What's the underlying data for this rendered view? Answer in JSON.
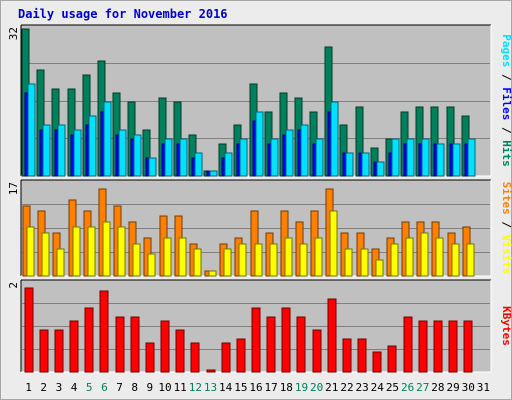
{
  "chart_data": {
    "title": "Daily usage for November 2016",
    "days": [
      "1",
      "2",
      "3",
      "4",
      "5",
      "6",
      "7",
      "8",
      "9",
      "10",
      "11",
      "12",
      "13",
      "14",
      "15",
      "16",
      "17",
      "18",
      "19",
      "20",
      "21",
      "22",
      "23",
      "24",
      "25",
      "26",
      "27",
      "28",
      "29",
      "30",
      "31"
    ],
    "weekend_days": [
      "5",
      "6",
      "12",
      "13",
      "19",
      "20",
      "26",
      "27"
    ],
    "colors": {
      "hits": "#00805c",
      "files": "#0000ff",
      "pages": "#00e0ff",
      "visits": "#ffff00",
      "sites": "#ff8000",
      "kbytes": "#ff0000",
      "weekend_label": "#00805c",
      "weekday_label": "#000000",
      "title": "#0000c8"
    },
    "panels": [
      {
        "type": "bar",
        "ymax_label": "32",
        "ylim": [
          0,
          32
        ],
        "ylabel_parts": [
          {
            "text": "Pages",
            "color": "#00e0ff"
          },
          {
            "text": " / ",
            "color": "#000000"
          },
          {
            "text": "Files",
            "color": "#0000ff"
          },
          {
            "text": " / ",
            "color": "#000000"
          },
          {
            "text": "Hits",
            "color": "#00805c"
          }
        ],
        "series": [
          {
            "name": "Hits",
            "color": "#00805c",
            "values": [
              32,
              23,
              19,
              19,
              22,
              25,
              18,
              16,
              10,
              17,
              16,
              9,
              1,
              7,
              11,
              20,
              14,
              18,
              17,
              14,
              28,
              11,
              15,
              6,
              8,
              14,
              15,
              15,
              15,
              13,
              0
            ]
          },
          {
            "name": "Files",
            "color": "#0000ff",
            "values": [
              18,
              10,
              10,
              9,
              11,
              14,
              9,
              8,
              4,
              7,
              7,
              4,
              1,
              4,
              7,
              12,
              7,
              9,
              10,
              7,
              14,
              5,
              5,
              3,
              5,
              7,
              7,
              7,
              7,
              7,
              0
            ]
          },
          {
            "name": "Pages",
            "color": "#00e0ff",
            "values": [
              20,
              11,
              11,
              10,
              13,
              16,
              10,
              9,
              4,
              8,
              8,
              5,
              1,
              5,
              8,
              14,
              8,
              10,
              11,
              8,
              16,
              5,
              5,
              3,
              8,
              8,
              8,
              7,
              7,
              8,
              0
            ]
          }
        ]
      },
      {
        "type": "bar",
        "ymax_label": "17",
        "ylim": [
          0,
          17
        ],
        "ylabel_parts": [
          {
            "text": "Sites",
            "color": "#ff8000"
          },
          {
            "text": " / ",
            "color": "#000000"
          },
          {
            "text": "Visits",
            "color": "#ffff00"
          }
        ],
        "series": [
          {
            "name": "Sites",
            "color": "#ff8000",
            "values": [
              13,
              12,
              8,
              14,
              12,
              16,
              13,
              10,
              7,
              11,
              11,
              6,
              1,
              6,
              7,
              12,
              8,
              12,
              10,
              12,
              16,
              8,
              8,
              5,
              7,
              10,
              10,
              10,
              8,
              9,
              0
            ]
          },
          {
            "name": "Visits",
            "color": "#ffff00",
            "values": [
              9,
              8,
              5,
              9,
              9,
              10,
              9,
              6,
              4,
              7,
              7,
              5,
              1,
              5,
              6,
              6,
              6,
              7,
              6,
              7,
              12,
              5,
              5,
              3,
              6,
              7,
              8,
              7,
              6,
              6,
              0
            ]
          }
        ]
      },
      {
        "type": "bar",
        "ymax_label": "2",
        "ylim": [
          0,
          2
        ],
        "ylabel_parts": [
          {
            "text": "KBytes",
            "color": "#ff0000"
          }
        ],
        "series": [
          {
            "name": "KBytes",
            "color": "#ff0000",
            "values": [
              1.9,
              0.95,
              0.95,
              1.15,
              1.45,
              1.85,
              1.25,
              1.25,
              0.65,
              1.15,
              0.95,
              0.65,
              0.05,
              0.65,
              0.75,
              1.45,
              1.25,
              1.45,
              1.25,
              0.95,
              1.65,
              0.75,
              0.75,
              0.45,
              0.6,
              1.25,
              1.15,
              1.15,
              1.15,
              1.15,
              0
            ]
          }
        ]
      }
    ]
  }
}
